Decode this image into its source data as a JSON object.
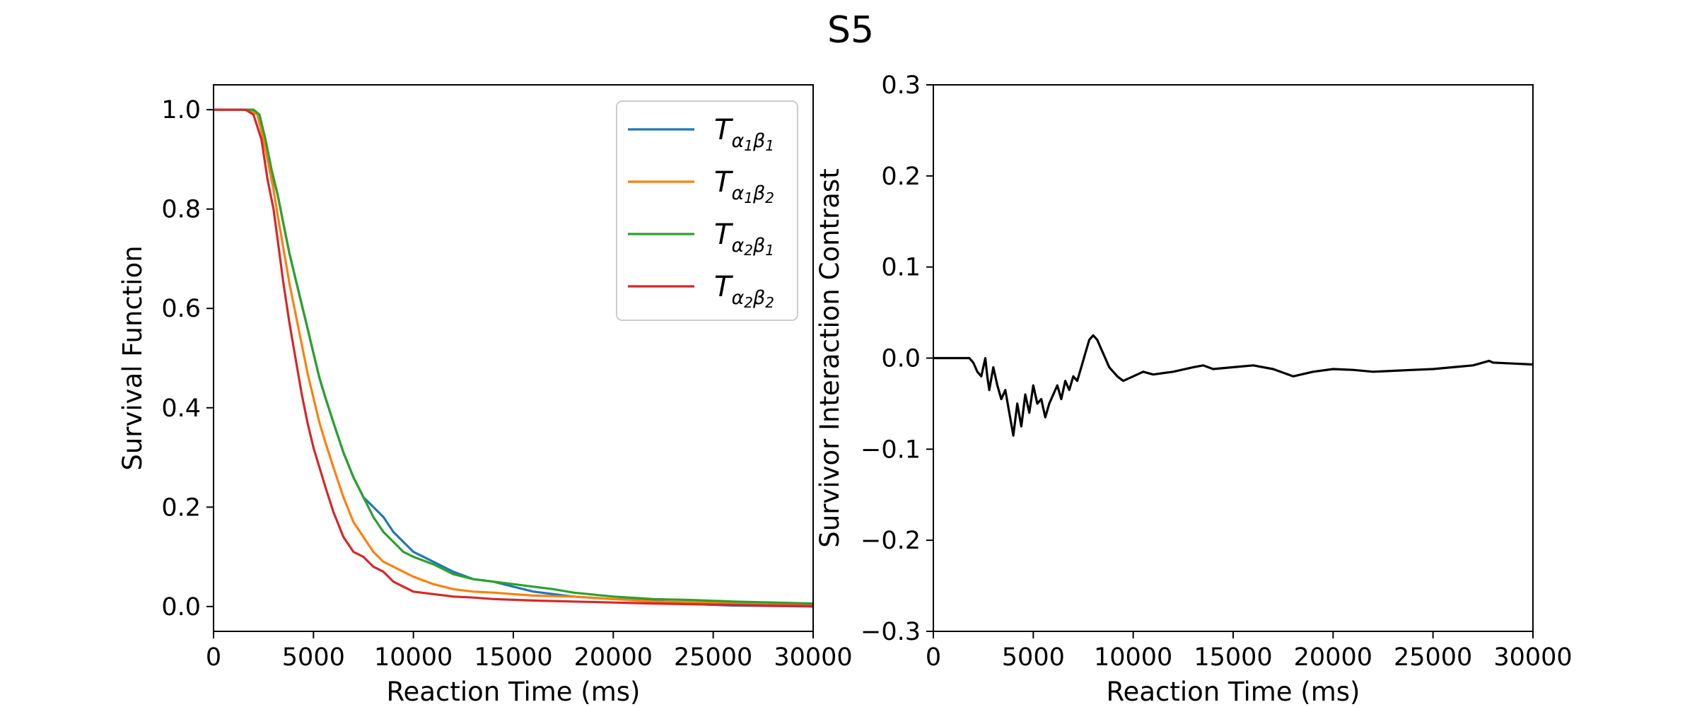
{
  "chart_data": [
    {
      "type": "line",
      "title": "S5",
      "xlabel": "Reaction Time (ms)",
      "ylabel": "Survival Function",
      "xlim": [
        0,
        30000
      ],
      "ylim": [
        -0.05,
        1.05
      ],
      "xticks": [
        0,
        5000,
        10000,
        15000,
        20000,
        25000,
        30000
      ],
      "xtick_labels": [
        "0",
        "5000",
        "10000",
        "15000",
        "20000",
        "25000",
        "30000"
      ],
      "yticks": [
        0.0,
        0.2,
        0.4,
        0.6,
        0.8,
        1.0
      ],
      "ytick_labels": [
        "0.0",
        "0.2",
        "0.4",
        "0.6",
        "0.8",
        "1.0"
      ],
      "legend": "top-right",
      "series": [
        {
          "name": "α1β1",
          "legend_base": "T",
          "legend_sub": [
            "α",
            "1",
            "β",
            "1"
          ],
          "color": "#1f77b4",
          "x": [
            0,
            1800,
            2200,
            2500,
            2800,
            3000,
            3200,
            3500,
            3800,
            4100,
            4400,
            4700,
            5000,
            5300,
            5600,
            6000,
            6500,
            7000,
            7500,
            8000,
            8500,
            9000,
            9500,
            10000,
            11000,
            12000,
            13000,
            14000,
            15000,
            16000,
            17000,
            18000,
            20000,
            22000,
            24000,
            26000,
            28000,
            30000
          ],
          "y": [
            1.0,
            1.0,
            0.99,
            0.94,
            0.89,
            0.86,
            0.83,
            0.77,
            0.71,
            0.66,
            0.61,
            0.56,
            0.51,
            0.46,
            0.42,
            0.37,
            0.31,
            0.26,
            0.22,
            0.2,
            0.18,
            0.15,
            0.13,
            0.11,
            0.09,
            0.07,
            0.055,
            0.05,
            0.04,
            0.03,
            0.025,
            0.02,
            0.015,
            0.012,
            0.005,
            0.002,
            0.001,
            0.0
          ]
        },
        {
          "name": "α1β2",
          "legend_base": "T",
          "legend_sub": [
            "α",
            "1",
            "β",
            "2"
          ],
          "color": "#ff7f0e",
          "x": [
            0,
            1800,
            2200,
            2500,
            2800,
            3000,
            3200,
            3500,
            3800,
            4100,
            4400,
            4700,
            5000,
            5300,
            5600,
            6000,
            6500,
            7000,
            7500,
            8000,
            8500,
            9000,
            9500,
            10000,
            11000,
            12000,
            13000,
            14000,
            15000,
            16000,
            18000,
            20000,
            22000,
            25000,
            28000,
            30000
          ],
          "y": [
            1.0,
            1.0,
            0.99,
            0.94,
            0.88,
            0.84,
            0.79,
            0.72,
            0.65,
            0.59,
            0.53,
            0.47,
            0.42,
            0.37,
            0.33,
            0.28,
            0.22,
            0.17,
            0.14,
            0.11,
            0.09,
            0.08,
            0.07,
            0.06,
            0.045,
            0.035,
            0.03,
            0.028,
            0.025,
            0.022,
            0.02,
            0.015,
            0.01,
            0.008,
            0.005,
            0.003
          ]
        },
        {
          "name": "α2β1",
          "legend_base": "T",
          "legend_sub": [
            "α",
            "2",
            "β",
            "1"
          ],
          "color": "#2ca02c",
          "x": [
            0,
            2000,
            2300,
            2600,
            2900,
            3200,
            3500,
            3800,
            4100,
            4400,
            4700,
            5000,
            5300,
            5600,
            6000,
            6500,
            7000,
            7500,
            8000,
            8500,
            9000,
            9500,
            10000,
            11000,
            12000,
            13000,
            14000,
            15000,
            16000,
            17000,
            18000,
            20000,
            22000,
            24000,
            26000,
            28000,
            30000
          ],
          "y": [
            1.0,
            1.0,
            0.99,
            0.94,
            0.88,
            0.83,
            0.77,
            0.71,
            0.66,
            0.61,
            0.56,
            0.51,
            0.46,
            0.42,
            0.37,
            0.31,
            0.26,
            0.22,
            0.18,
            0.15,
            0.13,
            0.11,
            0.1,
            0.085,
            0.065,
            0.055,
            0.05,
            0.045,
            0.04,
            0.035,
            0.028,
            0.02,
            0.015,
            0.013,
            0.01,
            0.008,
            0.006
          ]
        },
        {
          "name": "α2β2",
          "legend_base": "T",
          "legend_sub": [
            "α",
            "2",
            "β",
            "2"
          ],
          "color": "#d62728",
          "x": [
            0,
            1600,
            2000,
            2400,
            2700,
            3000,
            3200,
            3500,
            3800,
            4100,
            4400,
            4700,
            5000,
            5300,
            5600,
            6000,
            6500,
            7000,
            7500,
            8000,
            8500,
            9000,
            9500,
            10000,
            11000,
            12000,
            13000,
            14000,
            16000,
            18000,
            20000,
            22000,
            25000,
            28000,
            30000
          ],
          "y": [
            1.0,
            1.0,
            0.99,
            0.94,
            0.86,
            0.8,
            0.74,
            0.65,
            0.57,
            0.5,
            0.43,
            0.37,
            0.32,
            0.28,
            0.24,
            0.19,
            0.14,
            0.11,
            0.1,
            0.08,
            0.07,
            0.05,
            0.04,
            0.03,
            0.025,
            0.02,
            0.018,
            0.015,
            0.012,
            0.01,
            0.008,
            0.006,
            0.004,
            0.002,
            0.001
          ]
        }
      ]
    },
    {
      "type": "line",
      "xlabel": "Reaction Time (ms)",
      "ylabel": "Survivor Interaction Contrast",
      "xlim": [
        0,
        30000
      ],
      "ylim": [
        -0.3,
        0.3
      ],
      "xticks": [
        0,
        5000,
        10000,
        15000,
        20000,
        25000,
        30000
      ],
      "xtick_labels": [
        "0",
        "5000",
        "10000",
        "15000",
        "20000",
        "25000",
        "30000"
      ],
      "yticks": [
        -0.3,
        -0.2,
        -0.1,
        0.0,
        0.1,
        0.2,
        0.3
      ],
      "ytick_labels": [
        "−0.3",
        "−0.2",
        "−0.1",
        "0.0",
        "0.1",
        "0.2",
        "0.3"
      ],
      "series": [
        {
          "name": "SIC",
          "color": "#000000",
          "x": [
            0,
            1800,
            2000,
            2200,
            2400,
            2600,
            2700,
            2800,
            3000,
            3200,
            3400,
            3600,
            3800,
            4000,
            4200,
            4400,
            4600,
            4800,
            5000,
            5200,
            5400,
            5600,
            5800,
            6000,
            6200,
            6400,
            6600,
            6800,
            7000,
            7200,
            7400,
            7600,
            7800,
            8000,
            8200,
            8400,
            8600,
            8800,
            9000,
            9200,
            9500,
            10000,
            10500,
            11000,
            12000,
            13000,
            13500,
            14000,
            15000,
            16000,
            17000,
            18000,
            19000,
            20000,
            21000,
            22000,
            23000,
            24000,
            25000,
            26000,
            27000,
            27800,
            28000,
            29000,
            30000
          ],
          "y": [
            0.0,
            0.0,
            -0.005,
            -0.015,
            -0.02,
            0.0,
            -0.02,
            -0.035,
            -0.01,
            -0.03,
            -0.045,
            -0.035,
            -0.06,
            -0.085,
            -0.05,
            -0.075,
            -0.04,
            -0.06,
            -0.03,
            -0.05,
            -0.045,
            -0.065,
            -0.05,
            -0.04,
            -0.03,
            -0.045,
            -0.025,
            -0.035,
            -0.02,
            -0.025,
            -0.01,
            0.005,
            0.02,
            0.025,
            0.02,
            0.01,
            0.0,
            -0.01,
            -0.015,
            -0.02,
            -0.025,
            -0.02,
            -0.015,
            -0.018,
            -0.015,
            -0.01,
            -0.008,
            -0.012,
            -0.01,
            -0.008,
            -0.012,
            -0.02,
            -0.015,
            -0.012,
            -0.013,
            -0.015,
            -0.014,
            -0.013,
            -0.012,
            -0.01,
            -0.008,
            -0.003,
            -0.005,
            -0.006,
            -0.007
          ]
        }
      ]
    }
  ]
}
